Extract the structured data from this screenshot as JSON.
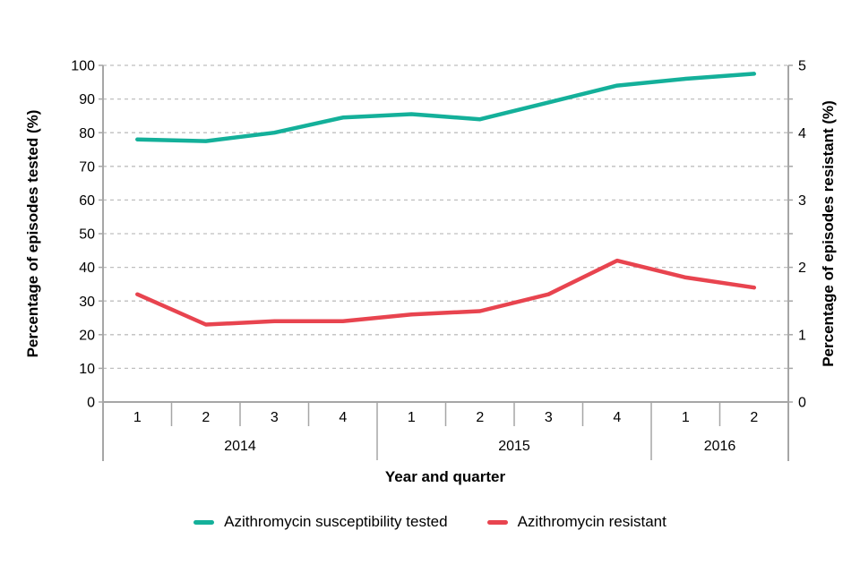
{
  "chart_data": {
    "type": "line",
    "title": "",
    "x_axis": {
      "label": "Year and quarter",
      "quarters": [
        "1",
        "2",
        "3",
        "4",
        "1",
        "2",
        "3",
        "4",
        "1",
        "2"
      ],
      "year_groups": [
        {
          "label": "2014",
          "count": 4
        },
        {
          "label": "2015",
          "count": 4
        },
        {
          "label": "2016",
          "count": 2
        }
      ]
    },
    "left_axis": {
      "label": "Percentage of episodes tested (%)",
      "min": 0,
      "max": 100,
      "label_step": 10,
      "gridline_step": 10
    },
    "right_axis": {
      "label": "Percentage of episodes resistant (%)",
      "min": 0,
      "max": 5,
      "label_step": 1,
      "tick_step": 0.5
    },
    "grid": "horizontal-dashed",
    "legend_position": "bottom",
    "series": [
      {
        "name": "Azithromycin susceptibility tested",
        "axis": "left",
        "color": "#14b09a",
        "values": [
          78,
          77.5,
          80,
          84.5,
          85.5,
          84,
          89,
          94,
          96,
          97.5
        ]
      },
      {
        "name": "Azithromycin resistant",
        "axis": "right",
        "color": "#e8444f",
        "values": [
          1.6,
          1.15,
          1.2,
          1.2,
          1.3,
          1.35,
          1.6,
          2.1,
          1.85,
          1.7
        ]
      }
    ]
  },
  "colors": {
    "axis_line": "#a6a6a6",
    "gridline": "#bfbfbf",
    "text": "#000000"
  }
}
